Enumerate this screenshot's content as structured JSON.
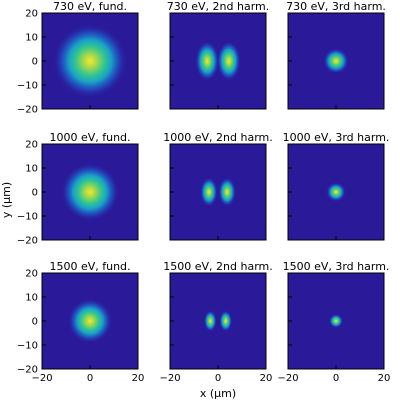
{
  "chart_data": {
    "type": "heatmap",
    "xlabel": "x (μm)",
    "ylabel": "y (μm)",
    "xlim": [
      -20,
      20
    ],
    "ylim": [
      -20,
      20
    ],
    "xticks": [
      "−20",
      "0",
      "20"
    ],
    "yticks": [
      "20",
      "10",
      "0",
      "−10",
      "−20"
    ],
    "colormap": [
      "#2a1a9a",
      "#1f57c8",
      "#18a0c8",
      "#37c88c",
      "#a6d84a",
      "#f3ea30"
    ],
    "panels": [
      {
        "title": "730 eV, fund.",
        "harmonic": 1,
        "sigma": 7.0,
        "lobe_offset": 0
      },
      {
        "title": "730 eV, 2nd harm.",
        "harmonic": 2,
        "sigma": 3.0,
        "lobe_offset": 4.5
      },
      {
        "title": "730 eV, 3rd harm.",
        "harmonic": 3,
        "sigma": 2.4,
        "lobe_offset": 0
      },
      {
        "title": "1000 eV, fund.",
        "harmonic": 1,
        "sigma": 5.5,
        "lobe_offset": 0
      },
      {
        "title": "1000 eV, 2nd harm.",
        "harmonic": 2,
        "sigma": 2.2,
        "lobe_offset": 3.8
      },
      {
        "title": "1000 eV, 3rd harm.",
        "harmonic": 3,
        "sigma": 1.8,
        "lobe_offset": 0
      },
      {
        "title": "1500 eV, fund.",
        "harmonic": 1,
        "sigma": 4.2,
        "lobe_offset": 0
      },
      {
        "title": "1500 eV, 2nd harm.",
        "harmonic": 2,
        "sigma": 1.6,
        "lobe_offset": 3.2
      },
      {
        "title": "1500 eV, 3rd harm.",
        "harmonic": 3,
        "sigma": 1.3,
        "lobe_offset": 0
      }
    ]
  }
}
